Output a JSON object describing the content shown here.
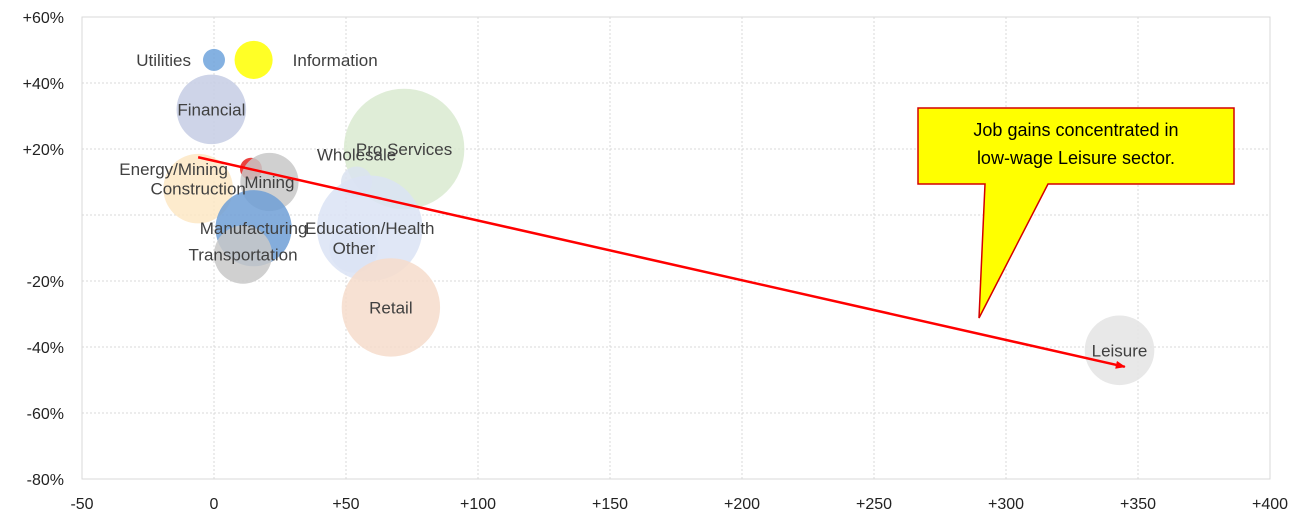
{
  "chart_data": {
    "type": "bubble",
    "title": "",
    "xlabel": "",
    "ylabel": "",
    "xlim": [
      -50,
      400
    ],
    "ylim": [
      -80,
      60
    ],
    "x_ticks": [
      "-50",
      "0",
      "+50",
      "+100",
      "+150",
      "+200",
      "+250",
      "+300",
      "+350",
      "+400"
    ],
    "y_ticks": [
      "+60%",
      "+40%",
      "+20%",
      "",
      "-20%",
      "-40%",
      "-60%",
      "-80%"
    ],
    "grid": true,
    "points": [
      {
        "label": "Utilities",
        "x": 0,
        "y": 47,
        "size": 1,
        "color": "#6fa3dc",
        "label_pos": "left"
      },
      {
        "label": "Information",
        "x": 15,
        "y": 47,
        "size": 3,
        "color": "#ffff00",
        "label_pos": "right"
      },
      {
        "label": "Financial",
        "x": -1,
        "y": 32,
        "size": 10,
        "color": "#c5cde4",
        "label_pos": "center"
      },
      {
        "label": "Pro Services",
        "x": 72,
        "y": 20,
        "size": 30,
        "color": "#d9ead0",
        "label_pos": "center"
      },
      {
        "label": "Construction",
        "x": -6,
        "y": 8,
        "size": 10,
        "color": "#fde8c4",
        "label_pos": "center"
      },
      {
        "label": "Energy/Mining",
        "x": 14,
        "y": 14,
        "size": 1,
        "color": "#e8201d",
        "label_pos": "left"
      },
      {
        "label": "Mining",
        "x": 21,
        "y": 10,
        "size": 7,
        "color": "#c8c8c8",
        "label_pos": "center"
      },
      {
        "label": "Wholesale",
        "x": 54,
        "y": 10,
        "size": 2,
        "color": "#dbe3f0",
        "label_pos": "top"
      },
      {
        "label": "Manufacturing",
        "x": 15,
        "y": -4,
        "size": 12,
        "color": "#6f9fd6",
        "label_pos": "center"
      },
      {
        "label": "Education/Health",
        "x": 59,
        "y": -4,
        "size": 23,
        "color": "#dbe3f4",
        "label_pos": "center"
      },
      {
        "label": "Other",
        "x": 53,
        "y": -10,
        "size": 5,
        "color": "#dbe3f4",
        "label_pos": "center"
      },
      {
        "label": "Transportation",
        "x": 11,
        "y": -12,
        "size": 7,
        "color": "#c8c8c8",
        "label_pos": "center"
      },
      {
        "label": "Retail",
        "x": 67,
        "y": -28,
        "size": 20,
        "color": "#f6dccb",
        "label_pos": "center"
      },
      {
        "label": "Leisure",
        "x": 343,
        "y": -41,
        "size": 10,
        "color": "#e4e4e4",
        "label_pos": "center"
      }
    ],
    "trend_arrow": {
      "from": [
        -6,
        17.5
      ],
      "to": [
        345,
        -46
      ],
      "color": "#ff0000"
    },
    "callout": {
      "lines": [
        "Job gains concentrated in",
        "low-wage Leisure sector."
      ],
      "fill": "#ffff00",
      "border": "#d40000"
    }
  }
}
